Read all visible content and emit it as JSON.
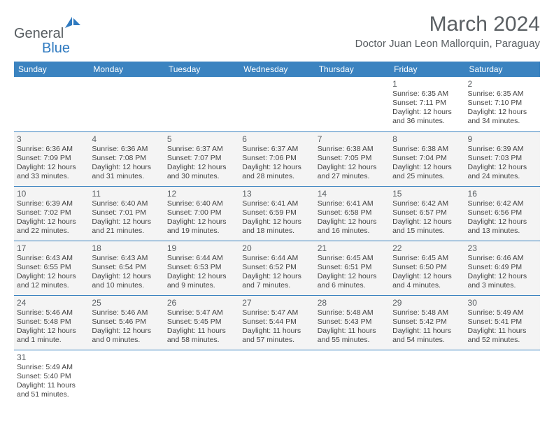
{
  "brand": {
    "part1": "General",
    "part2": "Blue"
  },
  "title": "March 2024",
  "location": "Doctor Juan Leon Mallorquin, Paraguay",
  "colors": {
    "header_bg": "#3b83c0",
    "header_text": "#ffffff",
    "cell_bg_shaded": "#f4f4f4",
    "cell_bg_plain": "#ffffff",
    "border": "#3b83c0",
    "title_text": "#5a5f63",
    "logo_gray": "#555b5f",
    "logo_blue": "#2f7ac0"
  },
  "weekdays": [
    "Sunday",
    "Monday",
    "Tuesday",
    "Wednesday",
    "Thursday",
    "Friday",
    "Saturday"
  ],
  "weeks": [
    [
      null,
      null,
      null,
      null,
      null,
      {
        "n": "1",
        "sr": "6:35 AM",
        "ss": "7:11 PM",
        "dl": "12 hours and 36 minutes."
      },
      {
        "n": "2",
        "sr": "6:35 AM",
        "ss": "7:10 PM",
        "dl": "12 hours and 34 minutes."
      }
    ],
    [
      {
        "n": "3",
        "sr": "6:36 AM",
        "ss": "7:09 PM",
        "dl": "12 hours and 33 minutes."
      },
      {
        "n": "4",
        "sr": "6:36 AM",
        "ss": "7:08 PM",
        "dl": "12 hours and 31 minutes."
      },
      {
        "n": "5",
        "sr": "6:37 AM",
        "ss": "7:07 PM",
        "dl": "12 hours and 30 minutes."
      },
      {
        "n": "6",
        "sr": "6:37 AM",
        "ss": "7:06 PM",
        "dl": "12 hours and 28 minutes."
      },
      {
        "n": "7",
        "sr": "6:38 AM",
        "ss": "7:05 PM",
        "dl": "12 hours and 27 minutes."
      },
      {
        "n": "8",
        "sr": "6:38 AM",
        "ss": "7:04 PM",
        "dl": "12 hours and 25 minutes."
      },
      {
        "n": "9",
        "sr": "6:39 AM",
        "ss": "7:03 PM",
        "dl": "12 hours and 24 minutes."
      }
    ],
    [
      {
        "n": "10",
        "sr": "6:39 AM",
        "ss": "7:02 PM",
        "dl": "12 hours and 22 minutes."
      },
      {
        "n": "11",
        "sr": "6:40 AM",
        "ss": "7:01 PM",
        "dl": "12 hours and 21 minutes."
      },
      {
        "n": "12",
        "sr": "6:40 AM",
        "ss": "7:00 PM",
        "dl": "12 hours and 19 minutes."
      },
      {
        "n": "13",
        "sr": "6:41 AM",
        "ss": "6:59 PM",
        "dl": "12 hours and 18 minutes."
      },
      {
        "n": "14",
        "sr": "6:41 AM",
        "ss": "6:58 PM",
        "dl": "12 hours and 16 minutes."
      },
      {
        "n": "15",
        "sr": "6:42 AM",
        "ss": "6:57 PM",
        "dl": "12 hours and 15 minutes."
      },
      {
        "n": "16",
        "sr": "6:42 AM",
        "ss": "6:56 PM",
        "dl": "12 hours and 13 minutes."
      }
    ],
    [
      {
        "n": "17",
        "sr": "6:43 AM",
        "ss": "6:55 PM",
        "dl": "12 hours and 12 minutes."
      },
      {
        "n": "18",
        "sr": "6:43 AM",
        "ss": "6:54 PM",
        "dl": "12 hours and 10 minutes."
      },
      {
        "n": "19",
        "sr": "6:44 AM",
        "ss": "6:53 PM",
        "dl": "12 hours and 9 minutes."
      },
      {
        "n": "20",
        "sr": "6:44 AM",
        "ss": "6:52 PM",
        "dl": "12 hours and 7 minutes."
      },
      {
        "n": "21",
        "sr": "6:45 AM",
        "ss": "6:51 PM",
        "dl": "12 hours and 6 minutes."
      },
      {
        "n": "22",
        "sr": "6:45 AM",
        "ss": "6:50 PM",
        "dl": "12 hours and 4 minutes."
      },
      {
        "n": "23",
        "sr": "6:46 AM",
        "ss": "6:49 PM",
        "dl": "12 hours and 3 minutes."
      }
    ],
    [
      {
        "n": "24",
        "sr": "5:46 AM",
        "ss": "5:48 PM",
        "dl": "12 hours and 1 minute."
      },
      {
        "n": "25",
        "sr": "5:46 AM",
        "ss": "5:46 PM",
        "dl": "12 hours and 0 minutes."
      },
      {
        "n": "26",
        "sr": "5:47 AM",
        "ss": "5:45 PM",
        "dl": "11 hours and 58 minutes."
      },
      {
        "n": "27",
        "sr": "5:47 AM",
        "ss": "5:44 PM",
        "dl": "11 hours and 57 minutes."
      },
      {
        "n": "28",
        "sr": "5:48 AM",
        "ss": "5:43 PM",
        "dl": "11 hours and 55 minutes."
      },
      {
        "n": "29",
        "sr": "5:48 AM",
        "ss": "5:42 PM",
        "dl": "11 hours and 54 minutes."
      },
      {
        "n": "30",
        "sr": "5:49 AM",
        "ss": "5:41 PM",
        "dl": "11 hours and 52 minutes."
      }
    ],
    [
      {
        "n": "31",
        "sr": "5:49 AM",
        "ss": "5:40 PM",
        "dl": "11 hours and 51 minutes."
      },
      null,
      null,
      null,
      null,
      null,
      null
    ]
  ],
  "labels": {
    "sunrise": "Sunrise: ",
    "sunset": "Sunset: ",
    "daylight": "Daylight: "
  }
}
